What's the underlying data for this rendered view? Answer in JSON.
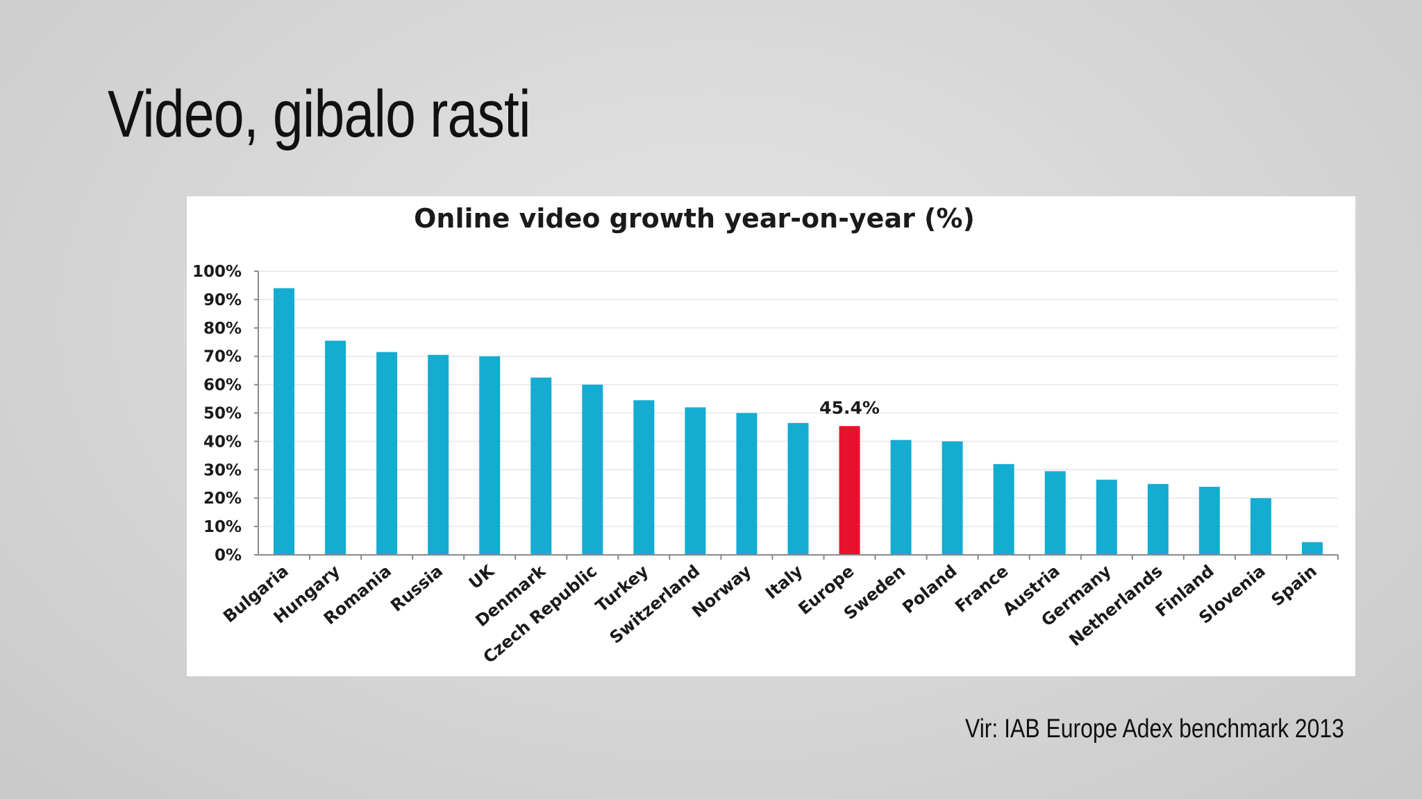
{
  "slide": {
    "title": "Video, gibalo rasti",
    "source": "Vir: IAB Europe Adex benchmark 2013"
  },
  "colors": {
    "bar": "#14acd0",
    "highlight": "#e8112d",
    "grid": "#e6e6e6",
    "axis": "#8a8a8a"
  },
  "chart_data": {
    "type": "bar",
    "title": "Online video growth year-on-year (%)",
    "xlabel": "",
    "ylabel": "",
    "ylim": [
      0,
      100
    ],
    "yticks": [
      "0%",
      "10%",
      "20%",
      "30%",
      "40%",
      "50%",
      "60%",
      "70%",
      "80%",
      "90%",
      "100%"
    ],
    "grid": true,
    "categories": [
      "Bulgaria",
      "Hungary",
      "Romania",
      "Russia",
      "UK",
      "Denmark",
      "Czech Republic",
      "Turkey",
      "Switzerland",
      "Norway",
      "Italy",
      "Europe",
      "Sweden",
      "Poland",
      "France",
      "Austria",
      "Germany",
      "Netherlands",
      "Finland",
      "Slovenia",
      "Spain"
    ],
    "values": [
      94,
      75.5,
      71.5,
      70.5,
      70,
      62.5,
      60,
      54.5,
      52,
      50,
      46.5,
      45.4,
      40.5,
      40,
      32,
      29.5,
      26.5,
      25,
      24,
      20,
      4.5
    ],
    "highlight_category": "Europe",
    "data_labels": [
      {
        "category": "Europe",
        "text": "45.4%"
      }
    ]
  }
}
